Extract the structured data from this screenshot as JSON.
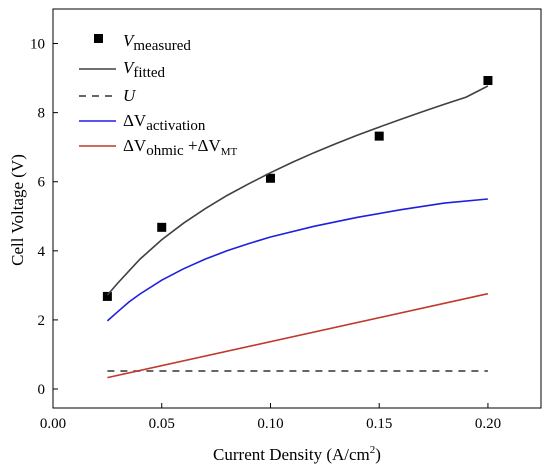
{
  "chart_data": {
    "type": "line",
    "xlabel": "Current Density (A/cm",
    "xlabel_sup": "2",
    "xlabel_end": ")",
    "ylabel": "Cell Voltage (V)",
    "xlim": [
      0.0,
      0.2244
    ],
    "ylim": [
      -0.55,
      11.0
    ],
    "x_ticks": [
      "0.00",
      "0.05",
      "0.10",
      "0.15",
      "0.20"
    ],
    "x_tick_values": [
      0.0,
      0.05,
      0.1,
      0.15,
      0.2
    ],
    "y_ticks": [
      "0",
      "2",
      "4",
      "6",
      "8",
      "10"
    ],
    "y_tick_values": [
      0,
      2,
      4,
      6,
      8,
      10
    ],
    "legend_position": "top-left",
    "series": [
      {
        "name": "V",
        "name_sub": "measured",
        "type": "scatter",
        "marker": "square",
        "color": "#000000",
        "x": [
          0.025,
          0.05,
          0.1,
          0.15,
          0.2
        ],
        "y": [
          2.68,
          4.68,
          6.1,
          7.32,
          8.93
        ]
      },
      {
        "name": "V",
        "name_sub": "fitted",
        "type": "line",
        "style": "solid",
        "color": "#404040",
        "x": [
          0.025,
          0.03,
          0.04,
          0.05,
          0.06,
          0.07,
          0.08,
          0.09,
          0.1,
          0.11,
          0.12,
          0.13,
          0.14,
          0.15,
          0.16,
          0.17,
          0.18,
          0.19,
          0.2
        ],
        "y": [
          2.72,
          3.08,
          3.76,
          4.32,
          4.8,
          5.22,
          5.6,
          5.94,
          6.26,
          6.56,
          6.84,
          7.1,
          7.35,
          7.58,
          7.81,
          8.03,
          8.24,
          8.45,
          8.77
        ]
      },
      {
        "name": "U",
        "type": "line",
        "style": "dashed",
        "color": "#333333",
        "x": [
          0.025,
          0.2
        ],
        "y": [
          0.52,
          0.52
        ]
      },
      {
        "name": "ΔV",
        "name_sub": "activation",
        "type": "line",
        "style": "solid",
        "color": "#1f1fe0",
        "x": [
          0.025,
          0.03,
          0.035,
          0.04,
          0.05,
          0.06,
          0.07,
          0.08,
          0.09,
          0.1,
          0.12,
          0.14,
          0.16,
          0.18,
          0.2
        ],
        "y": [
          1.97,
          2.25,
          2.52,
          2.75,
          3.15,
          3.48,
          3.76,
          4.0,
          4.21,
          4.4,
          4.71,
          4.97,
          5.19,
          5.38,
          5.5
        ]
      },
      {
        "name": "ΔV",
        "name_sub": "ohmic",
        "name_mid": " +ΔV",
        "name_sub2": "MT",
        "type": "line",
        "style": "solid",
        "color": "#c0392b",
        "x": [
          0.025,
          0.2
        ],
        "y": [
          0.33,
          2.76
        ]
      }
    ]
  }
}
